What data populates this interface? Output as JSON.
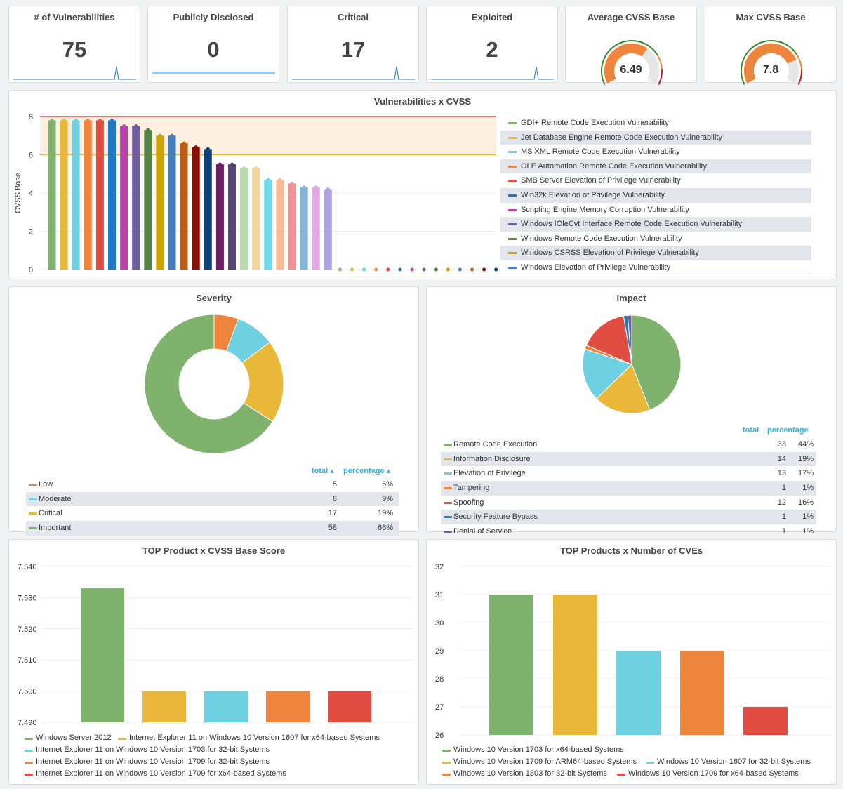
{
  "stats": [
    {
      "title": "# of Vulnerabilities",
      "value": "75"
    },
    {
      "title": "Publicly Disclosed",
      "value": "0"
    },
    {
      "title": "Critical",
      "value": "17"
    },
    {
      "title": "Exploited",
      "value": "2"
    }
  ],
  "gauges": [
    {
      "title": "Average CVSS Base",
      "value": "6.49",
      "fraction": 0.649
    },
    {
      "title": "Max CVSS Base",
      "value": "7.8",
      "fraction": 0.78
    }
  ],
  "colors": {
    "green": "#7eb26d",
    "yellow": "#eab839",
    "cyan": "#6ed0e0",
    "orange": "#ef843c",
    "red": "#e24d42",
    "blue": "#1f78c1",
    "purple": "#ba43a9",
    "violet": "#705da0",
    "darkgreen": "#508642",
    "mustard": "#cca300",
    "steel": "#447ebc",
    "rust": "#c15c17",
    "crimson": "#890f02",
    "navy": "#0a437c",
    "plum": "#6d1f62",
    "indigo": "#584477",
    "pale_green": "#b7dbab",
    "pale_yellow": "#f4d598",
    "pale_cyan": "#70dbed",
    "peach": "#f9ba8f",
    "salmon": "#f29191",
    "sky": "#82b5d8",
    "lilac": "#e5a8e2",
    "lavender": "#aea2e0"
  },
  "vuln_chart": {
    "title": "Vulnerabilities x CVSS",
    "ylabel": "CVSS Base",
    "yticks": [
      "0",
      "2",
      "4",
      "6",
      "8"
    ],
    "legend": [
      "GDI+ Remote Code Execution Vulnerability",
      "Jet Database Engine Remote Code Execution Vulnerability",
      "MS XML Remote Code Execution Vulnerability",
      "OLE Automation Remote Code Execution Vulnerability",
      "SMB Server Elevation of Privilege Vulnerability",
      "Win32k Elevation of Privilege Vulnerability",
      "Scripting Engine Memory Corruption Vulnerability",
      "Windows IOleCvt Interface Remote Code Execution Vulnerability",
      "Windows Remote Code Execution Vulnerability",
      "Windows CSRSS Elevation of Privilege Vulnerability",
      "Windows Elevation of Privilege Vulnerability"
    ]
  },
  "severity": {
    "title": "Severity",
    "col_total": "total ▴",
    "col_pct": "percentage ▴",
    "rows": [
      {
        "name": "Low",
        "total": "5",
        "pct": "6%"
      },
      {
        "name": "Moderate",
        "total": "8",
        "pct": "9%"
      },
      {
        "name": "Critical",
        "total": "17",
        "pct": "19%"
      },
      {
        "name": "Important",
        "total": "58",
        "pct": "66%"
      }
    ]
  },
  "impact": {
    "title": "Impact",
    "col_total": "total",
    "col_pct": "percentage",
    "rows": [
      {
        "name": "Remote Code Execution",
        "total": "33",
        "pct": "44%"
      },
      {
        "name": "Information Disclosure",
        "total": "14",
        "pct": "19%"
      },
      {
        "name": "Elevation of Privilege",
        "total": "13",
        "pct": "17%"
      },
      {
        "name": "Tampering",
        "total": "1",
        "pct": "1%"
      },
      {
        "name": "Spoofing",
        "total": "12",
        "pct": "16%"
      },
      {
        "name": "Security Feature Bypass",
        "total": "1",
        "pct": "1%"
      },
      {
        "name": "Denial of Service",
        "total": "1",
        "pct": "1%"
      }
    ]
  },
  "top_cvss": {
    "title": "TOP Product x CVSS Base Score",
    "yticks": [
      "7.490",
      "7.500",
      "7.510",
      "7.520",
      "7.530",
      "7.540"
    ],
    "legend": [
      "Windows Server 2012",
      "Internet Explorer 11 on Windows 10 Version 1607 for x64-based Systems",
      "Internet Explorer 11 on Windows 10 Version 1703 for 32-bit Systems",
      "Internet Explorer 11 on Windows 10 Version 1709 for 32-bit Systems",
      "Internet Explorer 11 on Windows 10 Version 1709 for x64-based Systems"
    ]
  },
  "top_cves": {
    "title": "TOP Products x Number of CVEs",
    "yticks": [
      "26",
      "27",
      "28",
      "29",
      "30",
      "31",
      "32"
    ],
    "legend": [
      "Windows 10 Version 1703 for x64-based Systems",
      "Windows 10 Version 1709 for ARM64-based Systems",
      "Windows 10 Version 1607 for 32-bit Systems",
      "Windows 10 Version 1803 for 32-bit Systems",
      "Windows 10 Version 1709 for x64-based Systems"
    ]
  },
  "chart_data": [
    {
      "type": "bar",
      "ylim": [
        0,
        8
      ],
      "thresholds": [
        6,
        8
      ],
      "values": [
        7.8,
        7.8,
        7.8,
        7.8,
        7.8,
        7.8,
        7.5,
        7.5,
        7.3,
        7.0,
        7.0,
        6.6,
        6.4,
        6.3,
        5.5,
        5.5,
        5.3,
        5.3,
        4.7,
        4.7,
        4.5,
        4.3,
        4.3,
        4.2,
        0,
        0,
        0,
        0,
        0,
        0,
        0,
        0,
        0,
        0,
        0,
        0,
        0,
        0
      ],
      "grid": true,
      "legend_position": "right"
    },
    {
      "type": "pie",
      "donut": true,
      "categories": [
        "Low",
        "Moderate",
        "Critical",
        "Important"
      ],
      "values": [
        5,
        8,
        17,
        58
      ]
    },
    {
      "type": "pie",
      "categories": [
        "Remote Code Execution",
        "Information Disclosure",
        "Elevation of Privilege",
        "Tampering",
        "Spoofing",
        "Security Feature Bypass",
        "Denial of Service"
      ],
      "values": [
        33,
        14,
        13,
        1,
        12,
        1,
        1
      ]
    },
    {
      "type": "bar",
      "values": [
        7.533,
        7.5,
        7.5,
        7.5,
        7.5
      ],
      "ylim": [
        7.49,
        7.54
      ],
      "grid": true,
      "legend_position": "bottom"
    },
    {
      "type": "bar",
      "values": [
        31,
        31,
        29,
        29,
        27
      ],
      "ylim": [
        26,
        32
      ],
      "grid": true,
      "legend_position": "bottom"
    }
  ]
}
